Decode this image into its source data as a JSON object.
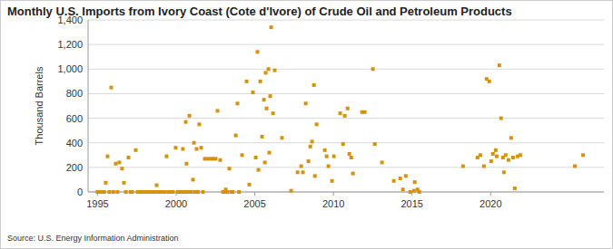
{
  "chart_data": {
    "type": "scatter",
    "title": "Monthly U.S. Imports from Ivory Coast (Cote d'Ivore) of Crude Oil and Petroleum Products",
    "y_label": "Thousand Barrels",
    "source": "Source: U.S. Energy Information Administration",
    "color": "#d4930d",
    "marker": "square",
    "grid": true,
    "xlim": [
      1994.4,
      2027.2
    ],
    "xticks": [
      1995,
      2000,
      2005,
      2010,
      2015,
      2020
    ],
    "ylim": [
      0,
      1400
    ],
    "yticks": [
      0,
      200,
      400,
      600,
      800,
      {
        "value": 1000,
        "label": "1,000"
      },
      {
        "value": 1200,
        "label": "1,200"
      },
      {
        "value": 1400,
        "label": "1,400"
      }
    ],
    "x": [
      1995.0,
      1995.08,
      1995.17,
      1995.25,
      1995.33,
      1995.42,
      1995.52,
      1995.64,
      1995.75,
      1995.87,
      1996.0,
      1996.16,
      1996.27,
      1996.39,
      1996.56,
      1996.68,
      1996.8,
      1996.97,
      1997.1,
      1997.2,
      1997.43,
      1997.55,
      1997.65,
      1997.75,
      1997.85,
      1997.95,
      1998.05,
      1998.15,
      1998.25,
      1998.35,
      1998.45,
      1998.55,
      1998.65,
      1998.76,
      1998.87,
      1998.97,
      1999.07,
      1999.17,
      1999.27,
      1999.39,
      1999.5,
      1999.6,
      1999.7,
      1999.8,
      1999.97,
      2000.1,
      2000.2,
      2000.3,
      2000.43,
      2000.52,
      2000.61,
      2000.66,
      2000.75,
      2000.84,
      2000.95,
      2001.07,
      2001.13,
      2001.2,
      2001.3,
      2001.38,
      2001.47,
      2001.59,
      2001.7,
      2001.82,
      2001.99,
      2002.17,
      2002.34,
      2002.51,
      2002.63,
      2002.8,
      2002.98,
      2003.08,
      2003.15,
      2003.25,
      2003.38,
      2003.5,
      2003.6,
      2003.79,
      2003.9,
      2004.0,
      2004.19,
      2004.48,
      2004.65,
      2004.88,
      2005.06,
      2005.17,
      2005.23,
      2005.35,
      2005.46,
      2005.58,
      2005.64,
      2005.69,
      2005.75,
      2005.87,
      2005.92,
      2005.98,
      2006.04,
      2006.16,
      2006.27,
      2006.73,
      2007.31,
      2007.72,
      2007.95,
      2008.06,
      2008.24,
      2008.41,
      2008.53,
      2008.64,
      2008.76,
      2008.82,
      2008.93,
      2009.45,
      2009.57,
      2009.68,
      2009.91,
      2010.03,
      2010.43,
      2010.61,
      2010.72,
      2010.9,
      2011.01,
      2011.13,
      2011.24,
      2011.82,
      2011.99,
      2012.51,
      2012.63,
      2013.09,
      2013.84,
      2014.25,
      2014.42,
      2014.6,
      2014.88,
      2015.12,
      2015.17,
      2015.35,
      2015.46,
      2018.24,
      2019.16,
      2019.34,
      2019.57,
      2019.74,
      2019.91,
      2020.03,
      2020.14,
      2020.32,
      2020.38,
      2020.55,
      2020.66,
      2020.78,
      2020.84,
      2020.95,
      2021.13,
      2021.3,
      2021.42,
      2021.53,
      2021.71,
      2021.88,
      2025.35,
      2025.87
    ],
    "values": [
      0,
      0,
      0,
      0,
      0,
      0,
      75,
      290,
      0,
      850,
      0,
      230,
      0,
      240,
      190,
      75,
      0,
      280,
      0,
      0,
      340,
      0,
      0,
      0,
      0,
      0,
      0,
      0,
      0,
      0,
      0,
      0,
      0,
      55,
      0,
      0,
      0,
      0,
      0,
      290,
      0,
      0,
      0,
      0,
      360,
      0,
      0,
      0,
      350,
      0,
      570,
      230,
      0,
      620,
      0,
      100,
      400,
      0,
      350,
      0,
      550,
      360,
      0,
      270,
      270,
      270,
      270,
      270,
      660,
      260,
      0,
      0,
      20,
      0,
      190,
      0,
      0,
      460,
      720,
      0,
      300,
      900,
      60,
      810,
      280,
      1140,
      180,
      900,
      450,
      750,
      240,
      970,
      680,
      1000,
      320,
      780,
      1340,
      640,
      990,
      440,
      10,
      160,
      210,
      160,
      720,
      250,
      370,
      410,
      870,
      130,
      550,
      340,
      290,
      210,
      90,
      290,
      640,
      390,
      620,
      680,
      310,
      280,
      150,
      650,
      650,
      1000,
      390,
      240,
      90,
      110,
      20,
      130,
      0,
      10,
      80,
      20,
      0,
      210,
      280,
      300,
      210,
      920,
      900,
      250,
      310,
      340,
      290,
      1030,
      600,
      280,
      160,
      300,
      260,
      440,
      280,
      30,
      290,
      300,
      210,
      300
    ]
  }
}
